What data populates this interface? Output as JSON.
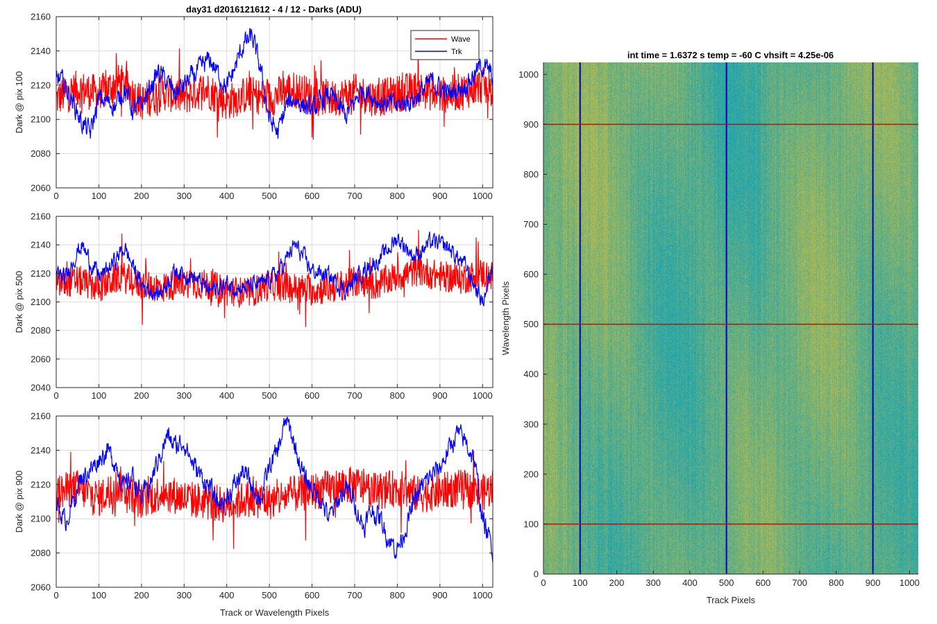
{
  "figure_title": "day31 d2016121612 - 4 / 12 - Darks (ADU)",
  "chart_data": [
    {
      "type": "line",
      "title": "day31 d2016121612 - 4 / 12 - Darks (ADU)",
      "ylabel": "Dark @ pix 100",
      "xlabel": "",
      "xlim": [
        0,
        1024
      ],
      "ylim": [
        2060,
        2160
      ],
      "xticks": [
        0,
        100,
        200,
        300,
        400,
        500,
        600,
        700,
        800,
        900,
        1000
      ],
      "yticks": [
        2060,
        2080,
        2100,
        2120,
        2140,
        2160
      ],
      "grid": true,
      "legend": "top-right",
      "series": [
        {
          "name": "Wave",
          "color": "#ff0000",
          "x": [
            0,
            50,
            100,
            150,
            200,
            250,
            300,
            350,
            400,
            450,
            500,
            550,
            600,
            650,
            700,
            750,
            800,
            850,
            900,
            950,
            1000,
            1024
          ],
          "values": [
            2112,
            2118,
            2115,
            2122,
            2110,
            2116,
            2113,
            2118,
            2110,
            2115,
            2112,
            2118,
            2114,
            2112,
            2116,
            2112,
            2115,
            2118,
            2114,
            2116,
            2120,
            2116
          ]
        },
        {
          "name": "Trk",
          "color": "#0000ff",
          "x": [
            0,
            20,
            40,
            60,
            80,
            100,
            120,
            140,
            160,
            180,
            200,
            240,
            280,
            320,
            360,
            400,
            440,
            460,
            480,
            500,
            520,
            540,
            560,
            600,
            640,
            680,
            720,
            760,
            800,
            840,
            880,
            920,
            960,
            1000,
            1024
          ],
          "values": [
            2125,
            2120,
            2110,
            2098,
            2092,
            2112,
            2110,
            2108,
            2118,
            2105,
            2108,
            2128,
            2115,
            2125,
            2135,
            2118,
            2144,
            2148,
            2128,
            2100,
            2092,
            2108,
            2112,
            2105,
            2115,
            2102,
            2118,
            2110,
            2108,
            2112,
            2122,
            2115,
            2120,
            2132,
            2125
          ]
        }
      ]
    },
    {
      "type": "line",
      "title": "",
      "ylabel": "Dark @ pix 500",
      "xlabel": "",
      "xlim": [
        0,
        1024
      ],
      "ylim": [
        2040,
        2160
      ],
      "xticks": [
        0,
        100,
        200,
        300,
        400,
        500,
        600,
        700,
        800,
        900,
        1000
      ],
      "yticks": [
        2040,
        2060,
        2080,
        2100,
        2120,
        2140,
        2160
      ],
      "grid": true,
      "series": [
        {
          "name": "Wave",
          "color": "#ff0000",
          "x": [
            0,
            50,
            100,
            150,
            200,
            250,
            300,
            350,
            400,
            450,
            500,
            550,
            600,
            650,
            700,
            750,
            800,
            850,
            900,
            950,
            1000,
            1024
          ],
          "values": [
            2112,
            2115,
            2110,
            2118,
            2112,
            2110,
            2114,
            2112,
            2108,
            2106,
            2112,
            2110,
            2108,
            2110,
            2114,
            2112,
            2118,
            2122,
            2118,
            2116,
            2120,
            2118
          ]
        },
        {
          "name": "Trk",
          "color": "#0000ff",
          "x": [
            0,
            20,
            40,
            60,
            80,
            100,
            120,
            140,
            160,
            180,
            200,
            240,
            280,
            320,
            360,
            400,
            440,
            480,
            520,
            560,
            600,
            640,
            680,
            720,
            760,
            800,
            840,
            880,
            920,
            960,
            1000,
            1024
          ],
          "values": [
            2122,
            2115,
            2130,
            2140,
            2128,
            2118,
            2122,
            2130,
            2138,
            2125,
            2112,
            2105,
            2122,
            2118,
            2108,
            2112,
            2110,
            2112,
            2120,
            2140,
            2122,
            2118,
            2108,
            2122,
            2130,
            2145,
            2132,
            2142,
            2138,
            2125,
            2100,
            2125
          ]
        }
      ]
    },
    {
      "type": "line",
      "title": "",
      "ylabel": "Dark @ pix 900",
      "xlabel": "Track or Wavelength Pixels",
      "xlim": [
        0,
        1024
      ],
      "ylim": [
        2060,
        2160
      ],
      "xticks": [
        0,
        100,
        200,
        300,
        400,
        500,
        600,
        700,
        800,
        900,
        1000
      ],
      "yticks": [
        2060,
        2080,
        2100,
        2120,
        2140,
        2160
      ],
      "grid": true,
      "series": [
        {
          "name": "Wave",
          "color": "#ff0000",
          "x": [
            0,
            50,
            100,
            150,
            200,
            250,
            300,
            350,
            400,
            450,
            500,
            550,
            600,
            650,
            700,
            750,
            800,
            850,
            900,
            950,
            1000,
            1024
          ],
          "values": [
            2115,
            2118,
            2112,
            2120,
            2110,
            2116,
            2112,
            2110,
            2108,
            2112,
            2110,
            2114,
            2116,
            2118,
            2120,
            2116,
            2118,
            2114,
            2116,
            2118,
            2115,
            2118
          ]
        },
        {
          "name": "Trk",
          "color": "#0000ff",
          "x": [
            0,
            20,
            40,
            60,
            80,
            100,
            120,
            140,
            160,
            180,
            200,
            220,
            240,
            260,
            280,
            300,
            320,
            340,
            360,
            380,
            400,
            420,
            440,
            460,
            480,
            500,
            520,
            540,
            560,
            580,
            600,
            620,
            640,
            660,
            680,
            700,
            720,
            740,
            760,
            780,
            800,
            820,
            840,
            860,
            880,
            900,
            920,
            940,
            960,
            980,
            1000,
            1024
          ],
          "values": [
            2110,
            2098,
            2110,
            2125,
            2128,
            2135,
            2140,
            2132,
            2118,
            2125,
            2112,
            2120,
            2135,
            2148,
            2142,
            2145,
            2132,
            2125,
            2118,
            2108,
            2112,
            2120,
            2128,
            2118,
            2112,
            2130,
            2140,
            2158,
            2142,
            2125,
            2118,
            2112,
            2100,
            2110,
            2118,
            2110,
            2095,
            2105,
            2100,
            2088,
            2082,
            2095,
            2110,
            2120,
            2125,
            2130,
            2140,
            2150,
            2145,
            2135,
            2100,
            2082
          ]
        }
      ]
    },
    {
      "type": "heatmap",
      "title": "int time = 1.6372 s    temp = -60 C    vhsift = 4.25e-06",
      "xlabel": "Track Pixels",
      "ylabel": "Wavelength Pixels",
      "xlim": [
        0,
        1024
      ],
      "ylim": [
        0,
        1024
      ],
      "xticks": [
        0,
        100,
        200,
        300,
        400,
        500,
        600,
        700,
        800,
        900,
        1000
      ],
      "yticks": [
        0,
        100,
        200,
        300,
        400,
        500,
        600,
        700,
        800,
        900,
        1000
      ],
      "colormap": [
        "#1aa4b2",
        "#bdbb4a"
      ],
      "track_marker_lines": [
        100,
        500,
        900
      ],
      "track_marker_color": "#0000aa",
      "wavelength_marker_lines": [
        100,
        500,
        900
      ],
      "wavelength_marker_color": "#e00000"
    }
  ]
}
